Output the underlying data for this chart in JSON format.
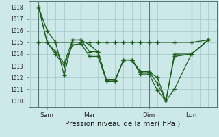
{
  "title": "Pression niveau de la mer( hPa )",
  "bg_color": "#cce8e8",
  "grid_color": "#aacccc",
  "line_color": "#1a5c1a",
  "sep_color": "#557777",
  "ylim": [
    1009.5,
    1018.5
  ],
  "yticks": [
    1010,
    1011,
    1012,
    1013,
    1014,
    1015,
    1016,
    1017,
    1018
  ],
  "xtick_labels": [
    "Sam",
    "Mar",
    "Dim",
    "Lun"
  ],
  "xtick_positions": [
    1.0,
    3.5,
    7.0,
    9.5
  ],
  "day_lines": [
    0.5,
    3.0,
    7.0,
    9.5
  ],
  "xlim": [
    -0.1,
    11.0
  ],
  "series": [
    {
      "x": [
        0.5,
        1.0,
        1.5,
        2.0,
        2.5,
        3.0,
        3.5,
        4.0,
        4.5,
        5.0,
        5.5,
        6.0,
        6.5,
        7.0,
        7.5,
        8.0,
        8.5,
        9.5,
        10.5
      ],
      "y": [
        1018,
        1016,
        1015,
        1012.2,
        1015.2,
        1015.2,
        1014.8,
        1014.2,
        1011.7,
        1011.7,
        1013.5,
        1013.5,
        1012.5,
        1012.5,
        1012.0,
        1010.0,
        1011.0,
        1014.0,
        1015.2
      ]
    },
    {
      "x": [
        0.5,
        1.0,
        1.5,
        2.0,
        2.5,
        3.0,
        3.5,
        4.0,
        4.5,
        5.0,
        5.5,
        6.0,
        6.5,
        7.0,
        7.5,
        8.0,
        8.5,
        9.5,
        10.5
      ],
      "y": [
        1018,
        1015,
        1014.2,
        1013.2,
        1015.2,
        1015.2,
        1014.2,
        1014.2,
        1011.8,
        1011.8,
        1013.5,
        1013.5,
        1012.5,
        1012.5,
        1011.5,
        1010.0,
        1013.8,
        1014.0,
        1015.2
      ]
    },
    {
      "x": [
        0.5,
        3.0,
        3.5,
        4.0,
        4.5,
        5.0,
        5.5,
        6.0,
        6.5,
        7.0,
        7.5,
        8.5,
        9.5,
        10.5
      ],
      "y": [
        1015,
        1015,
        1015,
        1015,
        1015,
        1015,
        1015,
        1015,
        1015,
        1015,
        1015,
        1015,
        1015,
        1015.2
      ]
    },
    {
      "x": [
        0.5,
        1.0,
        1.5,
        2.0,
        2.5,
        3.0,
        3.5,
        4.0,
        4.5,
        5.0,
        5.5,
        6.0,
        6.5,
        7.0,
        7.5,
        8.0,
        8.5,
        9.5,
        10.5
      ],
      "y": [
        1018,
        1015,
        1014,
        1013,
        1014.8,
        1014.9,
        1013.8,
        1013.8,
        1011.7,
        1011.7,
        1013.5,
        1013.5,
        1012.3,
        1012.3,
        1010.9,
        1010.0,
        1014.0,
        1014.0,
        1015.2
      ]
    }
  ]
}
